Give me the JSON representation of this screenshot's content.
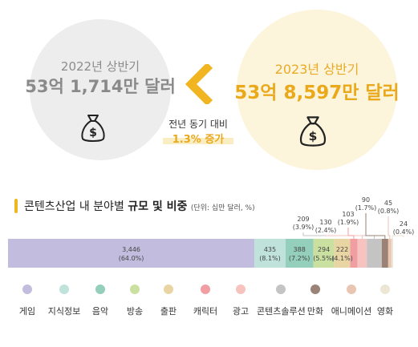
{
  "summary": {
    "previous": {
      "period": "2022년 상반기",
      "amount": "53억 1,714만 달러"
    },
    "current": {
      "period": "2023년 상반기",
      "amount": "53억 8,597만 달러"
    },
    "change_label": "전년 동기 대비",
    "change_value": "1.3% 증가"
  },
  "icons": {
    "previous_bag": "money-bag-icon",
    "current_bag": "money-bag-icon",
    "arrow": "chevron-left-icon"
  },
  "colors": {
    "accent": "#eaa91b",
    "previous_gray": "#8a8a8a"
  },
  "section": {
    "title_plain": "콘텐츠산업 내 분야별",
    "title_bold": "규모 및 비중",
    "unit": "(단위: 십만 달러, %)"
  },
  "chart_data": {
    "type": "bar",
    "orientation": "horizontal-stacked",
    "categories": [
      "게임",
      "지식정보",
      "음악",
      "방송",
      "출판",
      "캐릭터",
      "광고",
      "콘텐츠솔루션",
      "만화",
      "애니메이션",
      "영화"
    ],
    "values": [
      3446,
      435,
      388,
      294,
      222,
      103,
      130,
      209,
      90,
      45,
      24
    ],
    "shares": [
      64.0,
      8.1,
      7.2,
      5.5,
      4.1,
      1.9,
      2.4,
      3.9,
      1.7,
      0.8,
      0.4
    ],
    "labels": [
      "3,446",
      "435",
      "388",
      "294",
      "222",
      "103",
      "130",
      "209",
      "90",
      "45",
      "24"
    ],
    "share_labels": [
      "(64.0%)",
      "(8.1%)",
      "(7.2%)",
      "(5.5%)",
      "(4.1%)",
      "(1.9%)",
      "(2.4%)",
      "(3.9%)",
      "(1.7%)",
      "(0.8%)",
      "(0.4%)"
    ],
    "colors": [
      "#c2bddf",
      "#bfe3da",
      "#94cfbc",
      "#c9e0a0",
      "#e9d5a3",
      "#f09ea2",
      "#f6c3bf",
      "#c4c4c4",
      "#9b8276",
      "#e9c6b1",
      "#ece6d4"
    ],
    "legend_position": "bottom",
    "grid": false
  }
}
